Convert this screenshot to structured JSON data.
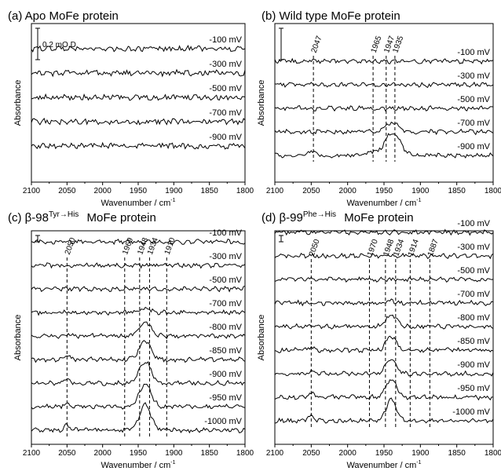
{
  "colors": {
    "ink": "#000000",
    "background": "#ffffff"
  },
  "chart_data": [
    {
      "type": "line",
      "title": "(a) Apo MoFe protein",
      "title_sup": "",
      "title_suffix": "",
      "xlabel": "Wavenumber / cm",
      "xlabel_sup": "-1",
      "ylabel": "Absorbance",
      "xlim": [
        2100,
        1800
      ],
      "xticks": [
        "2100",
        "2050",
        "2000",
        "1950",
        "1900",
        "1850",
        "1800"
      ],
      "scale_bar": "0.2 mO.D.",
      "peaks": [],
      "series": [
        {
          "name": "-100 mV",
          "peaks": []
        },
        {
          "name": "-300 mV",
          "peaks": []
        },
        {
          "name": "-500 mV",
          "peaks": []
        },
        {
          "name": "-700 mV",
          "peaks": []
        },
        {
          "name": "-900 mV",
          "peaks": []
        }
      ]
    },
    {
      "type": "line",
      "title": "(b) Wild type MoFe protein",
      "title_sup": "",
      "title_suffix": "",
      "xlabel": "Wavenumber / cm",
      "xlabel_sup": "-1",
      "ylabel": "Absorbance",
      "xlim": [
        2100,
        1800
      ],
      "xticks": [
        "2100",
        "2050",
        "2000",
        "1950",
        "1900",
        "1850",
        "1800"
      ],
      "scale_bar": "",
      "peaks": [
        "2047",
        "1965",
        "1947",
        "1935"
      ],
      "series": [
        {
          "name": "-100 mV",
          "peaks": []
        },
        {
          "name": "-300 mV",
          "peaks": []
        },
        {
          "name": "-500 mV",
          "peaks": []
        },
        {
          "name": "-700 mV",
          "peaks": [
            [
              1935,
              0.09,
              8
            ],
            [
              1947,
              0.04,
              5
            ]
          ]
        },
        {
          "name": "-900 mV",
          "peaks": [
            [
              1935,
              0.22,
              9
            ],
            [
              1947,
              0.1,
              6
            ],
            [
              1965,
              0.05,
              6
            ],
            [
              2047,
              0.06,
              5
            ]
          ]
        }
      ]
    },
    {
      "type": "line",
      "title": "(c) β-98",
      "title_sup": "Tyr→His",
      "title_suffix": " MoFe protein",
      "xlabel": "Wavenumber / cm",
      "xlabel_sup": "-1",
      "ylabel": "Absorbance",
      "xlim": [
        2100,
        1800
      ],
      "xticks": [
        "2100",
        "2050",
        "2000",
        "1950",
        "1900",
        "1850",
        "1800"
      ],
      "scale_bar": "",
      "peaks": [
        "2050",
        "1969",
        "1948",
        "1934",
        "1910"
      ],
      "series": [
        {
          "name": "-100 mV",
          "peaks": []
        },
        {
          "name": "-300 mV",
          "peaks": []
        },
        {
          "name": "-500 mV",
          "peaks": []
        },
        {
          "name": "-700 mV",
          "peaks": [
            [
              1940,
              0.04,
              7
            ]
          ]
        },
        {
          "name": "-800 mV",
          "peaks": [
            [
              1940,
              0.16,
              8
            ],
            [
              2050,
              0.03,
              4
            ]
          ]
        },
        {
          "name": "-850 mV",
          "peaks": [
            [
              1940,
              0.22,
              8
            ],
            [
              2050,
              0.04,
              4
            ]
          ]
        },
        {
          "name": "-900 mV",
          "peaks": [
            [
              1940,
              0.25,
              8
            ],
            [
              2050,
              0.05,
              4
            ]
          ]
        },
        {
          "name": "-950 mV",
          "peaks": [
            [
              1940,
              0.27,
              8
            ],
            [
              2050,
              0.05,
              4
            ]
          ]
        },
        {
          "name": "-1000 mV",
          "peaks": [
            [
              1940,
              0.29,
              8
            ],
            [
              2050,
              0.06,
              4
            ]
          ]
        }
      ]
    },
    {
      "type": "line",
      "title": "(d) β-99",
      "title_sup": "Phe→His",
      "title_suffix": " MoFe protein",
      "xlabel": "Wavenumber / cm",
      "xlabel_sup": "-1",
      "ylabel": "Absorbance",
      "xlim": [
        2100,
        1800
      ],
      "xticks": [
        "2100",
        "2050",
        "2000",
        "1950",
        "1900",
        "1850",
        "1800"
      ],
      "scale_bar": "",
      "peaks": [
        "2050",
        "1970",
        "1948",
        "1934",
        "1914",
        "1887"
      ],
      "series": [
        {
          "name": "-100 mV",
          "peaks": []
        },
        {
          "name": "-300 mV",
          "peaks": []
        },
        {
          "name": "-500 mV",
          "peaks": []
        },
        {
          "name": "-700 mV",
          "peaks": [
            [
              1940,
              0.03,
              6
            ]
          ]
        },
        {
          "name": "-800 mV",
          "peaks": [
            [
              1940,
              0.13,
              7
            ],
            [
              2050,
              0.02,
              4
            ]
          ]
        },
        {
          "name": "-850 mV",
          "peaks": [
            [
              1940,
              0.16,
              7
            ],
            [
              2050,
              0.03,
              4
            ]
          ]
        },
        {
          "name": "-900 mV",
          "peaks": [
            [
              1940,
              0.18,
              7
            ],
            [
              2050,
              0.04,
              4
            ]
          ]
        },
        {
          "name": "-950 mV",
          "peaks": [
            [
              1940,
              0.21,
              7
            ],
            [
              2050,
              0.04,
              4
            ]
          ]
        },
        {
          "name": "-1000 mV",
          "peaks": [
            [
              1940,
              0.24,
              7
            ],
            [
              2050,
              0.05,
              4
            ]
          ]
        }
      ]
    }
  ]
}
